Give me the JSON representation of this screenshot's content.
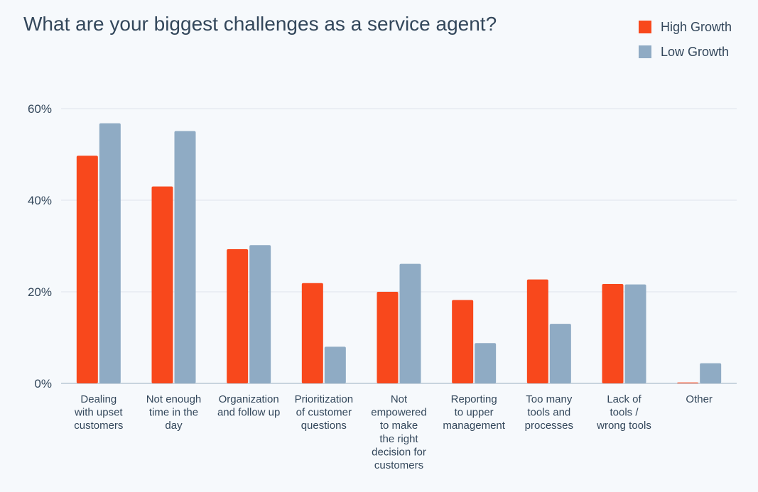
{
  "chart_data": {
    "type": "bar",
    "title": "What are your biggest challenges as a service agent?",
    "xlabel": "",
    "ylabel": "",
    "ylim": [
      0,
      60
    ],
    "y_ticks": [
      "0%",
      "20%",
      "40%",
      "60%"
    ],
    "grid": true,
    "legend_position": "top-right",
    "categories": [
      "Dealing with upset customers",
      "Not enough time in the day",
      "Organization and follow up",
      "Prioritization of customer questions",
      "Not empowered to make the right decision for customers",
      "Reporting to upper management",
      "Too many tools and processes",
      "Lack of tools / wrong tools",
      "Other"
    ],
    "category_label_lines": [
      [
        "Dealing",
        "with upset",
        "customers"
      ],
      [
        "Not enough",
        "time in the",
        "day"
      ],
      [
        "Organization",
        "and follow up"
      ],
      [
        "Prioritization",
        "of customer",
        "questions"
      ],
      [
        "Not",
        "empowered",
        "to make",
        "the right",
        "decision for",
        "customers"
      ],
      [
        "Reporting",
        "to upper",
        "management"
      ],
      [
        "Too many",
        "tools and",
        "processes"
      ],
      [
        "Lack of",
        "tools /",
        "wrong tools"
      ],
      [
        "Other"
      ]
    ],
    "series": [
      {
        "name": "High Growth",
        "color": "#F8481C",
        "values": [
          49.7,
          43.0,
          29.3,
          21.9,
          20.0,
          18.2,
          22.7,
          21.7,
          0.2
        ]
      },
      {
        "name": "Low Growth",
        "color": "#8FABC4",
        "values": [
          56.8,
          55.1,
          30.2,
          8.0,
          26.1,
          8.8,
          13.0,
          21.6,
          4.4
        ]
      }
    ]
  }
}
